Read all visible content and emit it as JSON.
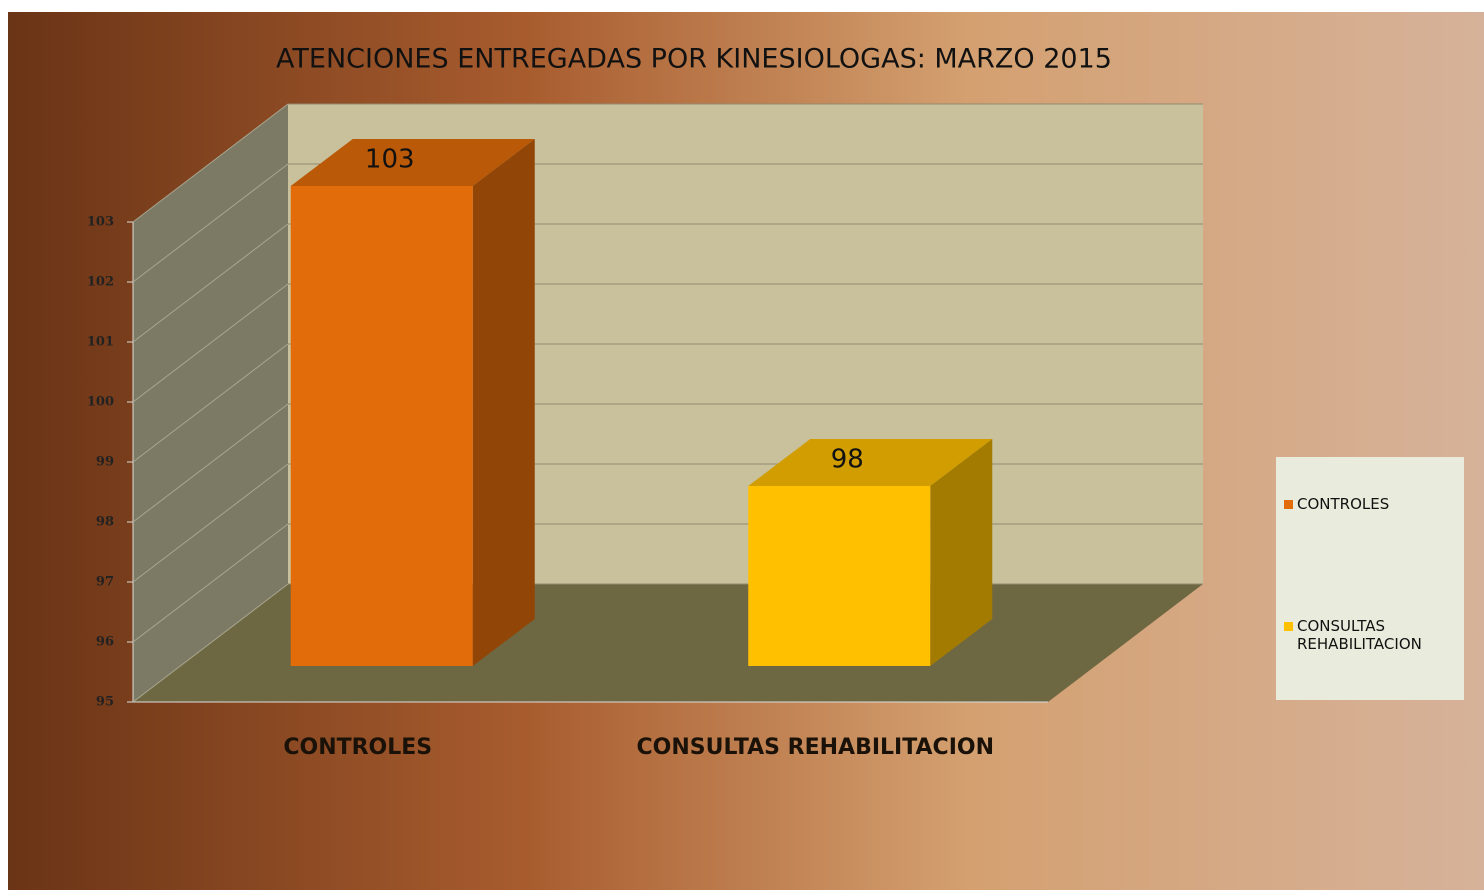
{
  "chart_data": {
    "type": "bar3d",
    "title": "ATENCIONES ENTREGADAS POR KINESIOLOGAS: MARZO  2015",
    "categories": [
      "CONTROLES",
      "CONSULTAS REHABILITACION"
    ],
    "values": [
      103,
      98
    ],
    "colors": [
      "#e36c0a",
      "#ffc000"
    ],
    "ylim": [
      95,
      103
    ],
    "yticks": [
      95,
      96,
      97,
      98,
      99,
      100,
      101,
      102,
      103
    ],
    "grid": true,
    "legend": "right"
  }
}
